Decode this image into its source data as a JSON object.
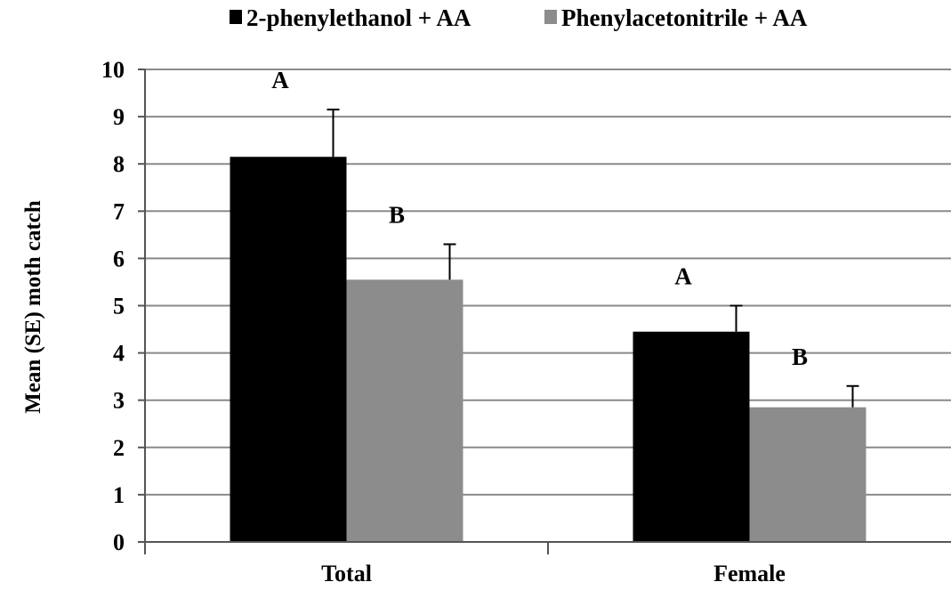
{
  "chart_data": {
    "type": "bar",
    "title": "",
    "xlabel": "",
    "ylabel": "Mean (SE) moth catch",
    "ylim": [
      0,
      10
    ],
    "yticks": [
      0,
      1,
      2,
      3,
      4,
      5,
      6,
      7,
      8,
      9,
      10
    ],
    "categories": [
      "Total",
      "Female"
    ],
    "grid": true,
    "legend": "top",
    "series": [
      {
        "name": "2-phenylethanol + AA",
        "color": "#000000",
        "values": [
          8.15,
          4.45
        ],
        "errors": [
          1.0,
          0.55
        ],
        "labels": [
          "A",
          "A"
        ]
      },
      {
        "name": "Phenylacetonitrile + AA",
        "color": "#8c8c8c",
        "values": [
          5.55,
          2.85
        ],
        "errors": [
          0.75,
          0.45
        ],
        "labels": [
          "B",
          "B"
        ]
      }
    ]
  }
}
